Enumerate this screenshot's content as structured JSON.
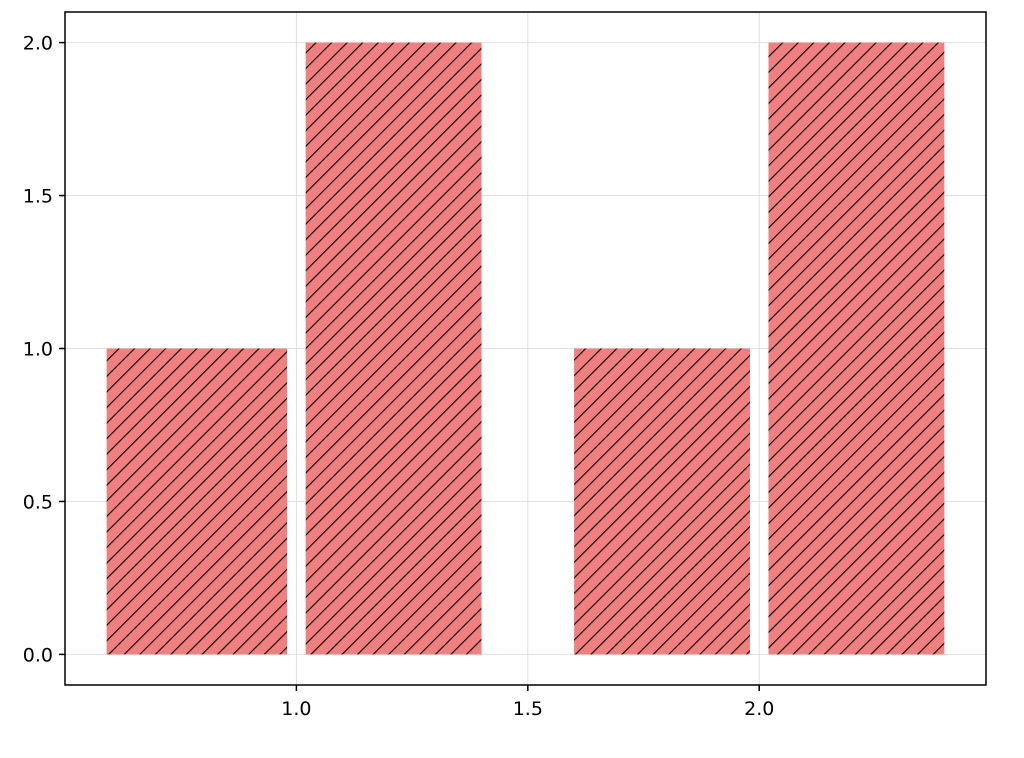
{
  "chart_data": {
    "type": "bar",
    "title": "",
    "xlabel": "",
    "ylabel": "",
    "bars": [
      {
        "x_start": 0.59,
        "x_end": 0.98,
        "value": 1.0
      },
      {
        "x_start": 1.02,
        "x_end": 1.4,
        "value": 2.0
      },
      {
        "x_start": 1.6,
        "x_end": 1.98,
        "value": 1.0
      },
      {
        "x_start": 2.02,
        "x_end": 2.4,
        "value": 2.0
      }
    ],
    "xlim": [
      0.5,
      2.49
    ],
    "ylim": [
      -0.1,
      2.1
    ],
    "x_ticks": [
      1.0,
      1.5,
      2.0
    ],
    "x_tick_labels": [
      "1.0",
      "1.5",
      "2.0"
    ],
    "y_ticks": [
      0.0,
      0.5,
      1.0,
      1.5,
      2.0
    ],
    "y_tick_labels": [
      "0.0",
      "0.5",
      "1.0",
      "1.5",
      "2.0"
    ],
    "grid": true,
    "bar_fill_color": "#f08080",
    "hatch_color": "#1a0a0a",
    "hatch": "diagonal-stripes",
    "grid_color": "#e0e0e0",
    "axis_color": "#000000"
  }
}
